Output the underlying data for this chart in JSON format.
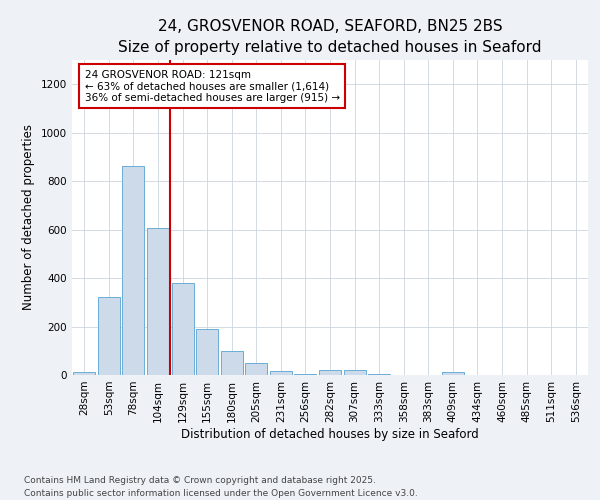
{
  "title": "24, GROSVENOR ROAD, SEAFORD, BN25 2BS",
  "subtitle": "Size of property relative to detached houses in Seaford",
  "xlabel": "Distribution of detached houses by size in Seaford",
  "ylabel": "Number of detached properties",
  "categories": [
    "28sqm",
    "53sqm",
    "78sqm",
    "104sqm",
    "129sqm",
    "155sqm",
    "180sqm",
    "205sqm",
    "231sqm",
    "256sqm",
    "282sqm",
    "307sqm",
    "333sqm",
    "358sqm",
    "383sqm",
    "409sqm",
    "434sqm",
    "460sqm",
    "485sqm",
    "511sqm",
    "536sqm"
  ],
  "values": [
    13,
    323,
    863,
    608,
    378,
    188,
    101,
    48,
    18,
    5,
    20,
    20,
    3,
    0,
    0,
    13,
    0,
    0,
    0,
    0,
    0
  ],
  "bar_color": "#ccdaea",
  "bar_edge_color": "#6aaed6",
  "ref_line_color": "#cc0000",
  "annotation_text": "24 GROSVENOR ROAD: 121sqm\n← 63% of detached houses are smaller (1,614)\n36% of semi-detached houses are larger (915) →",
  "annotation_box_color": "#cc0000",
  "footer": "Contains HM Land Registry data © Crown copyright and database right 2025.\nContains public sector information licensed under the Open Government Licence v3.0.",
  "bg_color": "#eef2f7",
  "plot_bg_color": "#ffffff",
  "ylim": [
    0,
    1300
  ],
  "yticks": [
    0,
    200,
    400,
    600,
    800,
    1000,
    1200
  ],
  "title_fontsize": 11,
  "subtitle_fontsize": 9.5,
  "axis_label_fontsize": 8.5,
  "tick_fontsize": 7.5,
  "annotation_fontsize": 7.5,
  "footer_fontsize": 6.5
}
